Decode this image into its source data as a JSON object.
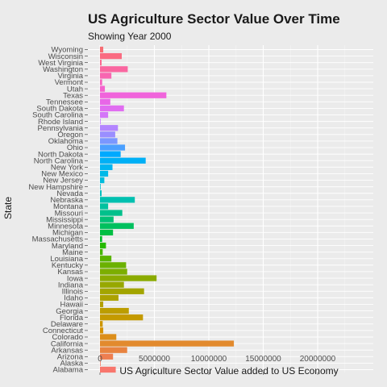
{
  "chart_data": {
    "type": "bar",
    "orientation": "horizontal",
    "title": "US Agriculture Sector Value Over Time",
    "subtitle": "Showing Year 2000",
    "xlabel": "US Agriculture Sector Value added to US Economy",
    "ylabel": "State",
    "xlim": [
      0,
      24500000
    ],
    "xticks": [
      0,
      5000000,
      10000000,
      15000000,
      20000000
    ],
    "xtick_labels": [
      "0",
      "5000000",
      "10000000",
      "15000000",
      "20000000"
    ],
    "grid": true,
    "legend": "none",
    "categories": [
      "Alabama",
      "Alaska",
      "Arizona",
      "Arkansas",
      "California",
      "Colorado",
      "Connecticut",
      "Delaware",
      "Florida",
      "Georgia",
      "Hawaii",
      "Idaho",
      "Illinois",
      "Indiana",
      "Iowa",
      "Kansas",
      "Kentucky",
      "Louisiana",
      "Maine",
      "Maryland",
      "Massachusetts",
      "Michigan",
      "Minnesota",
      "Mississippi",
      "Missouri",
      "Montana",
      "Nebraska",
      "Nevada",
      "New Hampshire",
      "New Jersey",
      "New Mexico",
      "New York",
      "North Carolina",
      "North Dakota",
      "Ohio",
      "Oklahoma",
      "Oregon",
      "Pennsylvania",
      "Rhode Island",
      "South Carolina",
      "South Dakota",
      "Tennessee",
      "Texas",
      "Utah",
      "Vermont",
      "Virginia",
      "Washington",
      "West Virginia",
      "Wisconsin",
      "Wyoming"
    ],
    "values": [
      1450000,
      50000,
      1200000,
      2500000,
      12300000,
      1500000,
      300000,
      250000,
      3950000,
      2650000,
      300000,
      1700000,
      4050000,
      2200000,
      5200000,
      2500000,
      2400000,
      1050000,
      250000,
      550000,
      200000,
      1200000,
      3100000,
      1250000,
      2050000,
      750000,
      3200000,
      150000,
      50000,
      400000,
      750000,
      1150000,
      4200000,
      1900000,
      2300000,
      1600000,
      1400000,
      1650000,
      50000,
      750000,
      2200000,
      950000,
      6100000,
      450000,
      200000,
      1050000,
      2550000,
      150000,
      2000000,
      300000
    ],
    "colors": [
      "#F8766D",
      "#F47A5F",
      "#EE7E50",
      "#E88340",
      "#E28A2E",
      "#DC8E1A",
      "#D59100",
      "#CD9600",
      "#C49A00",
      "#BC9D00",
      "#B3A000",
      "#ACA200",
      "#A3A500",
      "#97A800",
      "#8BAB00",
      "#7CAE00",
      "#6BB100",
      "#5AB400",
      "#45B700",
      "#26BA00",
      "#00BE27",
      "#00BF44",
      "#00C05E",
      "#00C076",
      "#00C08B",
      "#00C19F",
      "#00C0B0",
      "#00C0BF",
      "#00BECF",
      "#00BCDD",
      "#00B9E8",
      "#00B5F1",
      "#00B0F6",
      "#00A9FF",
      "#4BA0FF",
      "#7A97FF",
      "#9A8EFF",
      "#B385FF",
      "#C77CFF",
      "#D475F8",
      "#E06DF1",
      "#E866E7",
      "#F064DB",
      "#F563CE",
      "#F763C0",
      "#F866B1",
      "#FA66A0",
      "#FB6891",
      "#FA6B81",
      "#F76D73"
    ]
  }
}
